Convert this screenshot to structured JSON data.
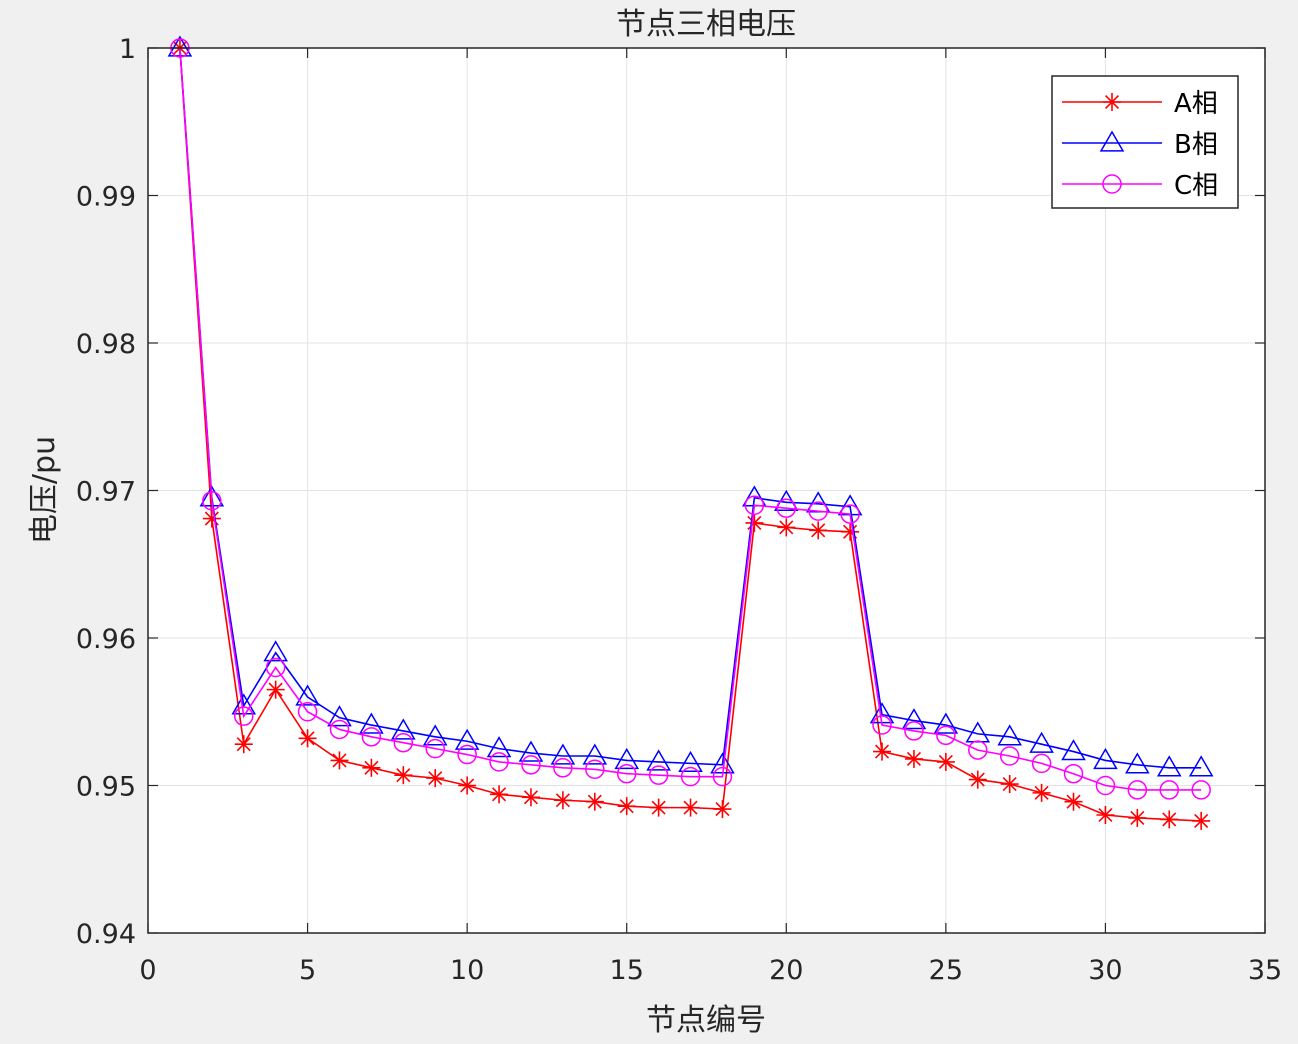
{
  "chart_data": {
    "type": "line",
    "title": "节点三相电压",
    "xlabel": "节点编号",
    "ylabel": "电压/pu",
    "xlim": [
      0,
      35
    ],
    "ylim": [
      0.94,
      1.0
    ],
    "x_ticks": [
      "0",
      "5",
      "10",
      "15",
      "20",
      "25",
      "30",
      "35"
    ],
    "y_ticks": [
      "0.94",
      "0.95",
      "0.96",
      "0.97",
      "0.98",
      "0.99",
      "1"
    ],
    "grid": true,
    "legend_position": "top-right",
    "x": [
      1,
      2,
      3,
      4,
      5,
      6,
      7,
      8,
      9,
      10,
      11,
      12,
      13,
      14,
      15,
      16,
      17,
      18,
      19,
      20,
      21,
      22,
      23,
      24,
      25,
      26,
      27,
      28,
      29,
      30,
      31,
      32,
      33
    ],
    "series": [
      {
        "name": "A相",
        "color": "#ff0000",
        "marker": "asterisk",
        "values": [
          1.0,
          0.9681,
          0.9528,
          0.9565,
          0.9532,
          0.9517,
          0.9512,
          0.9507,
          0.9505,
          0.95,
          0.9494,
          0.9492,
          0.949,
          0.9489,
          0.9486,
          0.9485,
          0.9485,
          0.9484,
          0.9678,
          0.9675,
          0.9673,
          0.9672,
          0.9523,
          0.9518,
          0.9516,
          0.9504,
          0.9501,
          0.9495,
          0.9489,
          0.948,
          0.9478,
          0.9477,
          0.9476
        ]
      },
      {
        "name": "B相",
        "color": "#0000ff",
        "marker": "triangle",
        "values": [
          1.0,
          0.9695,
          0.9554,
          0.959,
          0.956,
          0.9546,
          0.9541,
          0.9537,
          0.9533,
          0.953,
          0.9525,
          0.9522,
          0.952,
          0.952,
          0.9517,
          0.9516,
          0.9515,
          0.9514,
          0.9695,
          0.9692,
          0.9691,
          0.9689,
          0.9548,
          0.9544,
          0.9541,
          0.9535,
          0.9533,
          0.9528,
          0.9523,
          0.9517,
          0.9514,
          0.9512,
          0.9512
        ]
      },
      {
        "name": "C相",
        "color": "#ff00ff",
        "marker": "circle",
        "values": [
          1.0,
          0.9693,
          0.9547,
          0.958,
          0.955,
          0.9538,
          0.9533,
          0.9529,
          0.9525,
          0.9521,
          0.9516,
          0.9514,
          0.9512,
          0.9511,
          0.9508,
          0.9507,
          0.9506,
          0.9506,
          0.969,
          0.9688,
          0.9686,
          0.9684,
          0.9541,
          0.9537,
          0.9534,
          0.9524,
          0.952,
          0.9515,
          0.9508,
          0.95,
          0.9497,
          0.9497,
          0.9497
        ]
      }
    ]
  }
}
